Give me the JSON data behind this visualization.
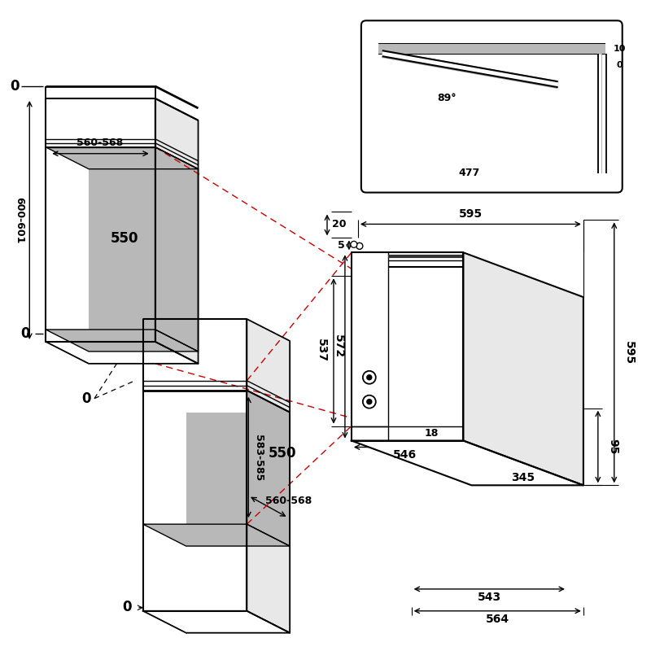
{
  "bg": "#ffffff",
  "lc": "#000000",
  "gc": "#b8b8b8",
  "rc": "#cc0000"
}
